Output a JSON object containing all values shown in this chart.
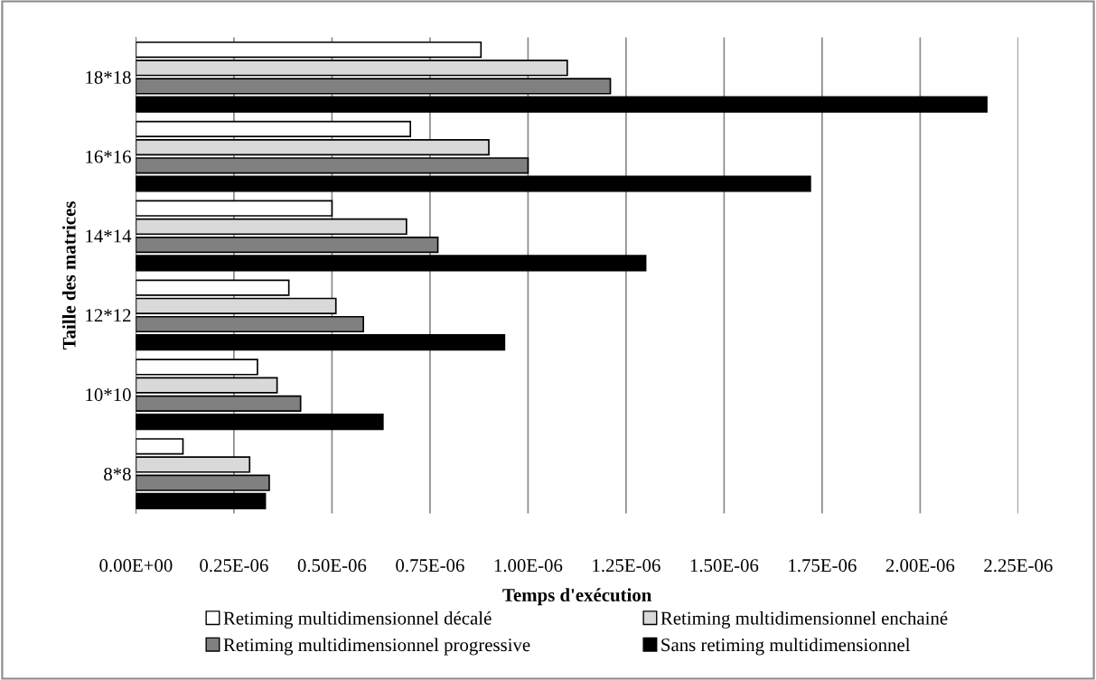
{
  "chart_data": {
    "type": "bar",
    "orientation": "horizontal",
    "xlabel": "Temps d'exécution",
    "ylabel": "Taille des matrices",
    "categories": [
      "18*18",
      "16*16",
      "14*14",
      "12*12",
      "10*10",
      "8*8"
    ],
    "series": [
      {
        "name": "Retiming multidimensionnel décalé",
        "color": "#ffffff",
        "values": [
          8.8e-07,
          7e-07,
          5e-07,
          3.9e-07,
          3.1e-07,
          1.2e-07
        ]
      },
      {
        "name": "Retiming multidimensionnel enchainé",
        "color": "#d9d9d9",
        "values": [
          1.1e-06,
          9e-07,
          6.9e-07,
          5.1e-07,
          3.6e-07,
          2.9e-07
        ]
      },
      {
        "name": "Retiming multidimensionnel progressive",
        "color": "#808080",
        "values": [
          1.21e-06,
          1e-06,
          7.7e-07,
          5.8e-07,
          4.2e-07,
          3.4e-07
        ]
      },
      {
        "name": "Sans retiming multidimensionnel",
        "color": "#000000",
        "values": [
          2.17e-06,
          1.72e-06,
          1.3e-06,
          9.4e-07,
          6.3e-07,
          3.3e-07
        ]
      }
    ],
    "xlim": [
      0,
      2.25e-06
    ],
    "xticks": [
      {
        "value": 0,
        "label": "0.00E+00"
      },
      {
        "value": 2.5e-07,
        "label": "0.25E-06"
      },
      {
        "value": 5e-07,
        "label": "0.50E-06"
      },
      {
        "value": 7.5e-07,
        "label": "0.75E-06"
      },
      {
        "value": 1e-06,
        "label": "1.00E-06"
      },
      {
        "value": 1.25e-06,
        "label": "1.25E-06"
      },
      {
        "value": 1.5e-06,
        "label": "1.50E-06"
      },
      {
        "value": 1.75e-06,
        "label": "1.75E-06"
      },
      {
        "value": 2e-06,
        "label": "2.00E-06"
      },
      {
        "value": 2.25e-06,
        "label": "2.25E-06"
      }
    ],
    "grid": "x",
    "legend": "bottom"
  }
}
